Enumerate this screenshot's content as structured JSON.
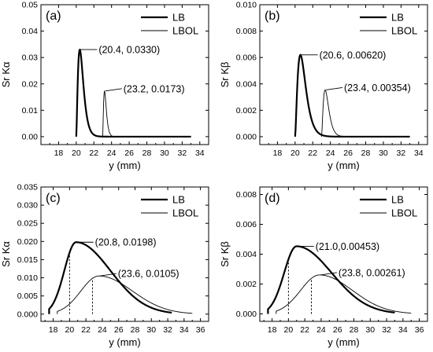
{
  "chart_data": [
    {
      "type": "line",
      "panel_label": "(a)",
      "xlabel": "y (mm)",
      "ylabel": "Sr Kα",
      "xlim": [
        16,
        35
      ],
      "ylim": [
        -0.003,
        0.05
      ],
      "x_ticks": [
        18,
        20,
        22,
        24,
        26,
        28,
        30,
        32,
        34
      ],
      "y_ticks": [
        0.0,
        0.01,
        0.02,
        0.03,
        0.04,
        0.05
      ],
      "y_tick_labels": [
        "0.00",
        "0.01",
        "0.02",
        "0.03",
        "0.04",
        "0.05"
      ],
      "grid": false,
      "legend_position": "top-right",
      "series": [
        {
          "name": "LB",
          "shape": "skewed",
          "onset": 20.0,
          "peak_x": 20.4,
          "peak_y": 0.033,
          "end": 33.0,
          "line_width": 2.2
        },
        {
          "name": "LBOL",
          "shape": "skewed",
          "onset": 23.0,
          "peak_x": 23.2,
          "peak_y": 0.0173,
          "end": 33.0,
          "line_width": 0.9
        }
      ],
      "annotations": [
        {
          "text": "(20.4, 0.0330)",
          "x": 20.4,
          "y": 0.033
        },
        {
          "text": "(23.2, 0.0173)",
          "x": 23.2,
          "y": 0.0173
        }
      ],
      "dashed_markers": []
    },
    {
      "type": "line",
      "panel_label": "(b)",
      "xlabel": "y (mm)",
      "ylabel": "Sr Kβ",
      "xlim": [
        16,
        35
      ],
      "ylim": [
        -0.0006,
        0.01
      ],
      "x_ticks": [
        18,
        20,
        22,
        24,
        26,
        28,
        30,
        32,
        34
      ],
      "y_ticks": [
        0.0,
        0.002,
        0.004,
        0.006,
        0.008,
        0.01
      ],
      "y_tick_labels": [
        "0.000",
        "0.002",
        "0.004",
        "0.006",
        "0.008",
        "0.010"
      ],
      "grid": false,
      "legend_position": "top-right",
      "series": [
        {
          "name": "LB",
          "shape": "skewed",
          "onset": 20.0,
          "peak_x": 20.6,
          "peak_y": 0.0062,
          "end": 33.0,
          "line_width": 2.2
        },
        {
          "name": "LBOL",
          "shape": "skewed",
          "onset": 23.0,
          "peak_x": 23.4,
          "peak_y": 0.00354,
          "end": 33.0,
          "line_width": 0.9
        }
      ],
      "annotations": [
        {
          "text": "(20.6, 0.00620)",
          "x": 20.6,
          "y": 0.0062
        },
        {
          "text": "(23.4, 0.00354)",
          "x": 23.4,
          "y": 0.00354
        }
      ],
      "dashed_markers": []
    },
    {
      "type": "line",
      "panel_label": "(c)",
      "xlabel": "y (mm)",
      "ylabel": "Sr Kα",
      "xlim": [
        16.5,
        37
      ],
      "ylim": [
        -0.002,
        0.035
      ],
      "x_ticks": [
        18,
        20,
        22,
        24,
        26,
        28,
        30,
        32,
        34,
        36
      ],
      "y_ticks": [
        0.0,
        0.005,
        0.01,
        0.015,
        0.02,
        0.025,
        0.03,
        0.035
      ],
      "y_tick_labels": [
        "0.000",
        "0.005",
        "0.010",
        "0.015",
        "0.020",
        "0.025",
        "0.030",
        "0.035"
      ],
      "grid": false,
      "legend_position": "top-right",
      "series": [
        {
          "name": "LB",
          "shape": "smooth",
          "start": 17.5,
          "peak_x": 20.8,
          "peak_y": 0.0198,
          "end": 32.5,
          "line_width": 2.2
        },
        {
          "name": "LBOL",
          "shape": "smooth",
          "start": 18.5,
          "peak_x": 23.6,
          "peak_y": 0.0105,
          "end": 35.0,
          "line_width": 0.9
        }
      ],
      "annotations": [
        {
          "text": "(20.8, 0.0198)",
          "x": 20.8,
          "y": 0.0198
        },
        {
          "text": "(23.6, 0.0105)",
          "x": 23.6,
          "y": 0.0105
        }
      ],
      "dashed_markers": [
        {
          "x": 20.0,
          "series": "LB"
        },
        {
          "x": 22.8,
          "series": "LBOL"
        }
      ]
    },
    {
      "type": "line",
      "panel_label": "(d)",
      "xlabel": "y (mm)",
      "ylabel": "Sr Kβ",
      "xlim": [
        16.5,
        37
      ],
      "ylim": [
        -0.0005,
        0.0085
      ],
      "x_ticks": [
        18,
        20,
        22,
        24,
        26,
        28,
        30,
        32,
        34,
        36
      ],
      "y_ticks": [
        0.0,
        0.002,
        0.004,
        0.006,
        0.008
      ],
      "y_tick_labels": [
        "0.000",
        "0.002",
        "0.004",
        "0.006",
        "0.008"
      ],
      "grid": false,
      "legend_position": "top-right",
      "series": [
        {
          "name": "LB",
          "shape": "smooth",
          "start": 17.5,
          "peak_x": 21.0,
          "peak_y": 0.00453,
          "end": 33.0,
          "line_width": 2.2
        },
        {
          "name": "LBOL",
          "shape": "smooth",
          "start": 18.5,
          "peak_x": 23.8,
          "peak_y": 0.00261,
          "end": 35.0,
          "line_width": 0.9
        }
      ],
      "annotations": [
        {
          "text": "(21.0,0.00453)",
          "x": 21.0,
          "y": 0.00453
        },
        {
          "text": "(23.8, 0.00261)",
          "x": 23.8,
          "y": 0.00261
        }
      ],
      "dashed_markers": [
        {
          "x": 20.0,
          "series": "LB"
        },
        {
          "x": 22.8,
          "series": "LBOL"
        }
      ]
    }
  ]
}
